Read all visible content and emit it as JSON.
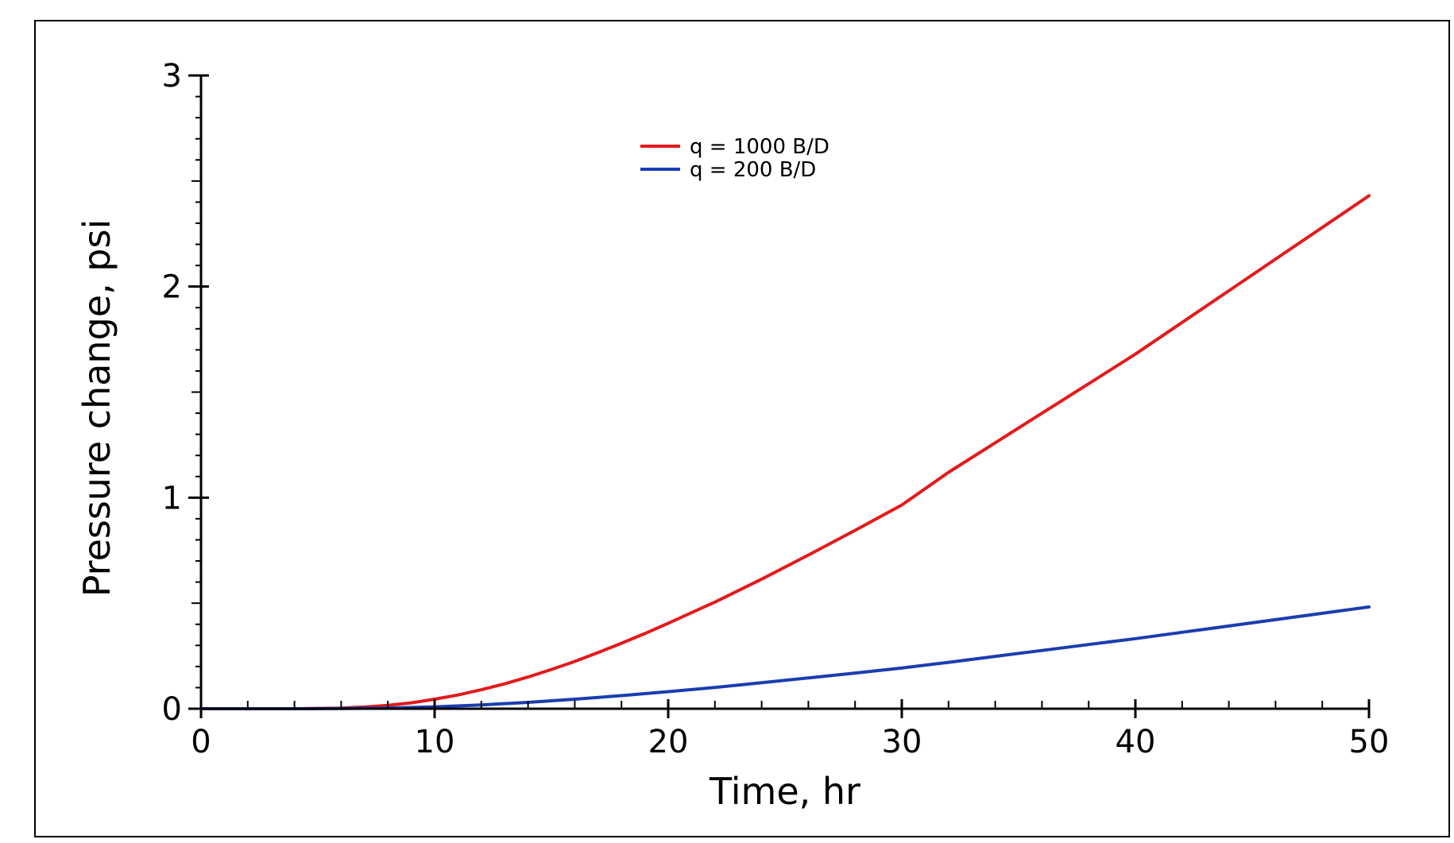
{
  "chart_data": {
    "type": "line",
    "title": "",
    "xlabel": "Time, hr",
    "ylabel": "Pressure change, psi",
    "xlim": [
      0,
      50
    ],
    "ylim": [
      0,
      3
    ],
    "x_ticks": [
      0,
      10,
      20,
      30,
      40,
      50
    ],
    "y_ticks": [
      0,
      1,
      2,
      3
    ],
    "x_tick_labels": [
      "0",
      "10",
      "20",
      "30",
      "40",
      "50"
    ],
    "y_tick_labels": [
      "0",
      "1",
      "2",
      "3"
    ],
    "x_minor_step": 2,
    "y_minor_step": 0.1,
    "grid": false,
    "legend_position": "top-center",
    "series": [
      {
        "name": "q = 1000 B/D",
        "color": "#e31a1c",
        "x": [
          0,
          2,
          4,
          6,
          7,
          8,
          9,
          10,
          11,
          12,
          13,
          14,
          15,
          16,
          17,
          18,
          19,
          20,
          22,
          24,
          26,
          28,
          30,
          32,
          34,
          36,
          38,
          40,
          42,
          44,
          46,
          48,
          50
        ],
        "y": [
          0,
          0,
          0,
          0.003,
          0.008,
          0.016,
          0.028,
          0.045,
          0.065,
          0.09,
          0.118,
          0.15,
          0.186,
          0.224,
          0.266,
          0.31,
          0.356,
          0.405,
          0.505,
          0.614,
          0.728,
          0.845,
          0.965,
          1.12,
          1.26,
          1.4,
          1.54,
          1.68,
          1.83,
          1.98,
          2.13,
          2.28,
          2.43
        ]
      },
      {
        "name": "q = 200 B/D",
        "color": "#1a3db0",
        "x": [
          0,
          2,
          4,
          6,
          8,
          10,
          12,
          14,
          16,
          18,
          20,
          22,
          24,
          26,
          28,
          30,
          32,
          34,
          36,
          38,
          40,
          42,
          44,
          46,
          48,
          50
        ],
        "y": [
          0,
          0,
          0,
          0.001,
          0.003,
          0.009,
          0.018,
          0.03,
          0.045,
          0.062,
          0.081,
          0.101,
          0.123,
          0.146,
          0.169,
          0.193,
          0.22,
          0.248,
          0.276,
          0.304,
          0.332,
          0.362,
          0.392,
          0.422,
          0.452,
          0.482
        ]
      }
    ]
  }
}
